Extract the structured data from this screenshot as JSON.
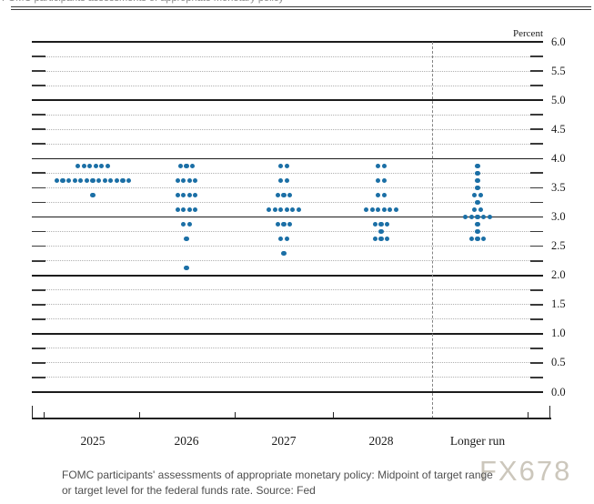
{
  "page": {
    "clipped_header_text": "FOMC participants assessments of appropriate monetary policy",
    "watermark": "FX678",
    "caption_line1": "FOMC participants' assessments of appropriate monetary policy: Midpoint of target range",
    "caption_line2": "or target level for the federal funds rate. Source: Fed"
  },
  "chart_data": {
    "type": "scatter",
    "subtype": "fomc-dot-plot",
    "title": "FOMC participants' assessments of appropriate monetary policy",
    "unit_label": "Percent",
    "xlabel": "",
    "ylabel": "Percent",
    "ylim": [
      0.0,
      6.0
    ],
    "ytick_label_step": 0.5,
    "ytick_minor_step": 0.25,
    "grid": "solid at integers, dotted at quarter points",
    "legend_position": "none",
    "separator_before_category": "Longer run",
    "dot_color": "#1b6fa6",
    "categories": [
      "2025",
      "2026",
      "2027",
      "2028",
      "Longer run"
    ],
    "series": [
      {
        "category": "2025",
        "dots": [
          {
            "rate": 3.875,
            "count": 6
          },
          {
            "rate": 3.625,
            "count": 13
          },
          {
            "rate": 3.375,
            "count": 1
          }
        ]
      },
      {
        "category": "2026",
        "dots": [
          {
            "rate": 3.875,
            "count": 3
          },
          {
            "rate": 3.625,
            "count": 4
          },
          {
            "rate": 3.375,
            "count": 4
          },
          {
            "rate": 3.125,
            "count": 4
          },
          {
            "rate": 2.875,
            "count": 2
          },
          {
            "rate": 2.625,
            "count": 1
          },
          {
            "rate": 2.125,
            "count": 1
          }
        ]
      },
      {
        "category": "2027",
        "dots": [
          {
            "rate": 3.875,
            "count": 2
          },
          {
            "rate": 3.625,
            "count": 2
          },
          {
            "rate": 3.375,
            "count": 3
          },
          {
            "rate": 3.125,
            "count": 6
          },
          {
            "rate": 2.875,
            "count": 3
          },
          {
            "rate": 2.625,
            "count": 2
          },
          {
            "rate": 2.375,
            "count": 1
          }
        ]
      },
      {
        "category": "2028",
        "dots": [
          {
            "rate": 3.875,
            "count": 2
          },
          {
            "rate": 3.625,
            "count": 2
          },
          {
            "rate": 3.375,
            "count": 2
          },
          {
            "rate": 3.125,
            "count": 6
          },
          {
            "rate": 2.875,
            "count": 3
          },
          {
            "rate": 2.75,
            "count": 1
          },
          {
            "rate": 2.625,
            "count": 3
          }
        ]
      },
      {
        "category": "Longer run",
        "dots": [
          {
            "rate": 3.875,
            "count": 1
          },
          {
            "rate": 3.75,
            "count": 1
          },
          {
            "rate": 3.625,
            "count": 1
          },
          {
            "rate": 3.5,
            "count": 1
          },
          {
            "rate": 3.375,
            "count": 2
          },
          {
            "rate": 3.25,
            "count": 1
          },
          {
            "rate": 3.125,
            "count": 2
          },
          {
            "rate": 3.0,
            "count": 5
          },
          {
            "rate": 2.875,
            "count": 1
          },
          {
            "rate": 2.75,
            "count": 1
          },
          {
            "rate": 2.625,
            "count": 3
          }
        ]
      }
    ]
  }
}
